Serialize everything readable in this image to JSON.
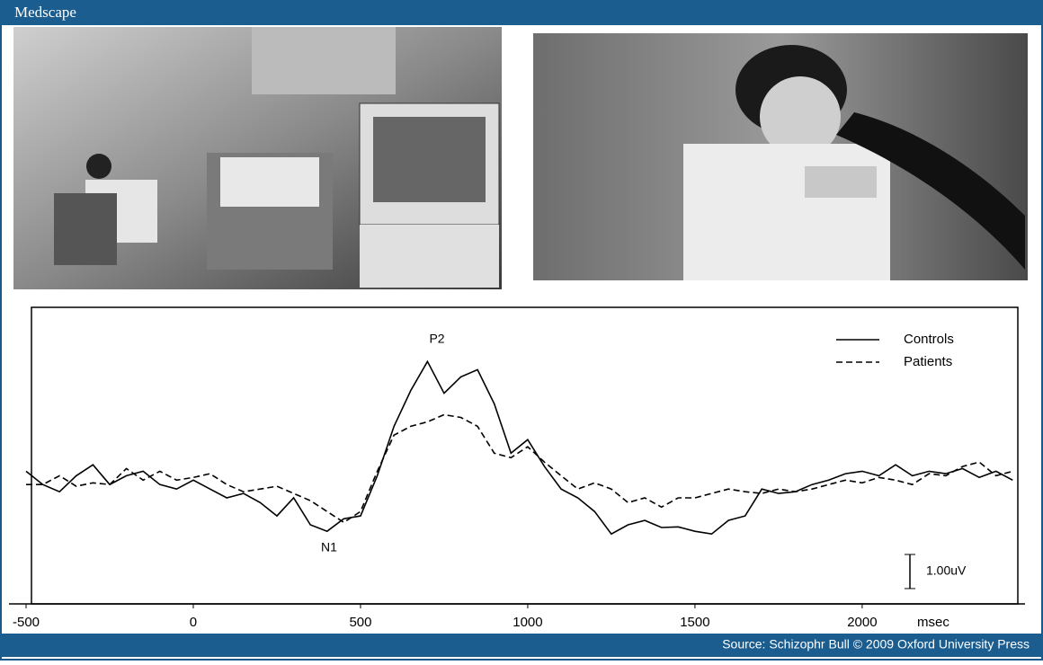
{
  "header": {
    "title": "Medscape"
  },
  "chart_data": {
    "type": "line",
    "x": [
      -500,
      -450,
      -400,
      -350,
      -300,
      -250,
      -200,
      -150,
      -100,
      -50,
      0,
      50,
      100,
      150,
      200,
      250,
      300,
      350,
      400,
      450,
      500,
      550,
      600,
      650,
      700,
      750,
      800,
      850,
      900,
      950,
      1000,
      1050,
      1100,
      1150,
      1200,
      1250,
      1300,
      1350,
      1400,
      1450,
      1500,
      1550,
      1600,
      1650,
      1700,
      1750,
      1800,
      1850,
      1900,
      1950,
      2000,
      2050,
      2100,
      2150,
      2200,
      2250,
      2300,
      2350,
      2400,
      2450
    ],
    "series": [
      {
        "name": "Controls",
        "color": "#000000",
        "dash": false,
        "values": [
          0.39,
          0,
          -0.21,
          0.26,
          0.58,
          0,
          0.26,
          0.39,
          0,
          -0.13,
          0.13,
          -0.13,
          -0.39,
          -0.26,
          -0.53,
          -0.92,
          -0.39,
          -1.18,
          -1.37,
          -1,
          -0.92,
          0.26,
          1.71,
          2.76,
          3.61,
          2.68,
          3.16,
          3.37,
          2.37,
          0.92,
          1.32,
          0.53,
          -0.13,
          -0.39,
          -0.79,
          -1.45,
          -1.18,
          -1.05,
          -1.26,
          -1.24,
          -1.37,
          -1.45,
          -1.05,
          -0.92,
          -0.13,
          -0.26,
          -0.21,
          0,
          0.13,
          0.32,
          0.39,
          0.26,
          0.58,
          0.26,
          0.39,
          0.32,
          0.47,
          0.21,
          0.39,
          0.13
        ]
      },
      {
        "name": "Patients",
        "color": "#000000",
        "dash": true,
        "values": [
          0,
          0,
          0.26,
          -0.05,
          0.05,
          0,
          0.47,
          0.13,
          0.39,
          0.13,
          0.21,
          0.32,
          0,
          -0.21,
          -0.13,
          -0.05,
          -0.26,
          -0.47,
          -0.79,
          -1.11,
          -0.79,
          0.39,
          1.45,
          1.71,
          1.84,
          2.05,
          1.97,
          1.71,
          0.92,
          0.79,
          1.11,
          0.66,
          0.26,
          -0.13,
          0.05,
          -0.13,
          -0.53,
          -0.39,
          -0.66,
          -0.39,
          -0.39,
          -0.26,
          -0.13,
          -0.21,
          -0.26,
          -0.13,
          -0.21,
          -0.13,
          0,
          0.13,
          0.05,
          0.21,
          0.13,
          0,
          0.32,
          0.26,
          0.53,
          0.66,
          0.26,
          0.39
        ]
      }
    ],
    "xlim": [
      -500,
      2460
    ],
    "ylim": [
      -3.5,
      5.2
    ],
    "xticks": [
      -500,
      0,
      500,
      1000,
      1500,
      2000
    ],
    "x_label": "msec",
    "annotations": [
      "P2",
      "N1"
    ],
    "scale_bar": {
      "value": 1,
      "label": "1.00uV"
    }
  },
  "footer": {
    "source": "Source: Schizophr Bull © 2009 Oxford University Press"
  }
}
